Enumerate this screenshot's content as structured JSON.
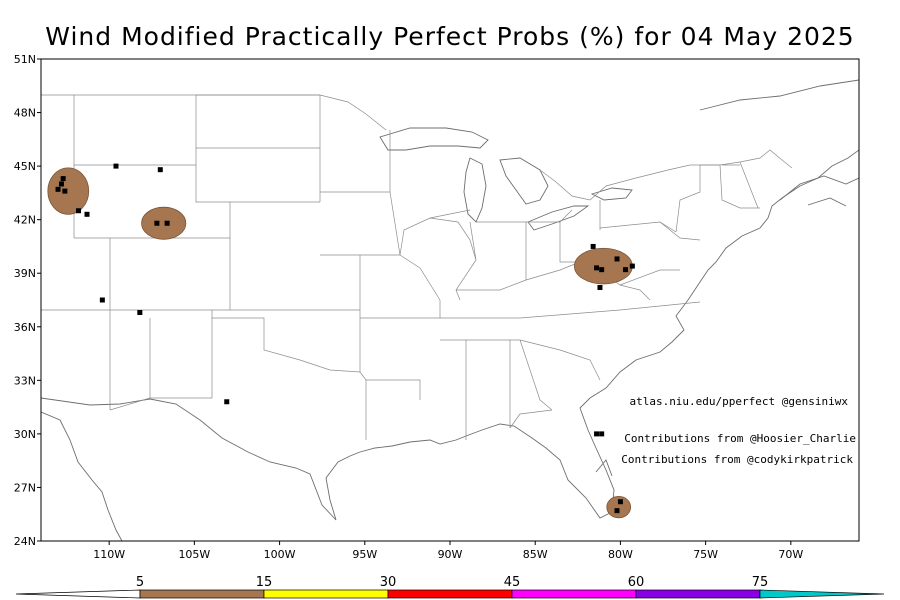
{
  "title": "Wind Modified Practically Perfect Probs (%) for 04 May 2025",
  "lat_labels": [
    "51N",
    "48N",
    "45N",
    "42N",
    "39N",
    "36N",
    "33N",
    "30N",
    "27N",
    "24N"
  ],
  "lon_labels": [
    "110W",
    "105W",
    "100W",
    "95W",
    "90W",
    "85W",
    "80W",
    "75W",
    "70W"
  ],
  "lon_values": [
    110,
    105,
    100,
    95,
    90,
    85,
    80,
    75,
    70
  ],
  "lat_values": [
    51,
    48,
    45,
    42,
    39,
    36,
    33,
    30,
    27,
    24
  ],
  "credits": {
    "line1": "atlas.niu.edu/pperfect @gensiniwx",
    "line2": "Contributions from @Hoosier_Charlie",
    "line3": "Contributions from @codykirkpatrick"
  },
  "colorbar": {
    "labels": [
      "5",
      "15",
      "30",
      "45",
      "60",
      "75"
    ],
    "colors": [
      "#a57650",
      "#ffff00",
      "#ff0000",
      "#ff00ff",
      "#8a00e6",
      "#00c8c8"
    ]
  },
  "map_data": {
    "probability_areas": [
      {
        "lon": -112.4,
        "lat": 43.6,
        "rx_deg": 1.2,
        "ry_deg": 1.3,
        "level": "5-15"
      },
      {
        "lon": -106.8,
        "lat": 41.8,
        "rx_deg": 1.3,
        "ry_deg": 0.9,
        "level": "5-15"
      },
      {
        "lon": -81.0,
        "lat": 39.4,
        "rx_deg": 1.7,
        "ry_deg": 1.0,
        "level": "5-15"
      },
      {
        "lon": -80.1,
        "lat": 25.9,
        "rx_deg": 0.7,
        "ry_deg": 0.6,
        "level": "5-15"
      }
    ],
    "reports": [
      {
        "lon": -112.7,
        "lat": 44.3
      },
      {
        "lon": -112.8,
        "lat": 44.0
      },
      {
        "lon": -113.0,
        "lat": 43.7
      },
      {
        "lon": -112.6,
        "lat": 43.6
      },
      {
        "lon": -111.8,
        "lat": 42.5
      },
      {
        "lon": -111.3,
        "lat": 42.3
      },
      {
        "lon": -109.6,
        "lat": 45.0
      },
      {
        "lon": -107.0,
        "lat": 44.8
      },
      {
        "lon": -107.2,
        "lat": 41.8
      },
      {
        "lon": -106.6,
        "lat": 41.8
      },
      {
        "lon": -110.4,
        "lat": 37.5
      },
      {
        "lon": -108.2,
        "lat": 36.8
      },
      {
        "lon": -103.1,
        "lat": 31.8
      },
      {
        "lon": -81.6,
        "lat": 40.5
      },
      {
        "lon": -81.4,
        "lat": 39.3
      },
      {
        "lon": -81.1,
        "lat": 39.2
      },
      {
        "lon": -80.2,
        "lat": 39.8
      },
      {
        "lon": -79.7,
        "lat": 39.2
      },
      {
        "lon": -79.3,
        "lat": 39.4
      },
      {
        "lon": -81.2,
        "lat": 38.2
      },
      {
        "lon": -81.4,
        "lat": 30.0
      },
      {
        "lon": -81.1,
        "lat": 30.0
      },
      {
        "lon": -80.0,
        "lat": 26.2
      },
      {
        "lon": -80.2,
        "lat": 25.7
      }
    ]
  }
}
